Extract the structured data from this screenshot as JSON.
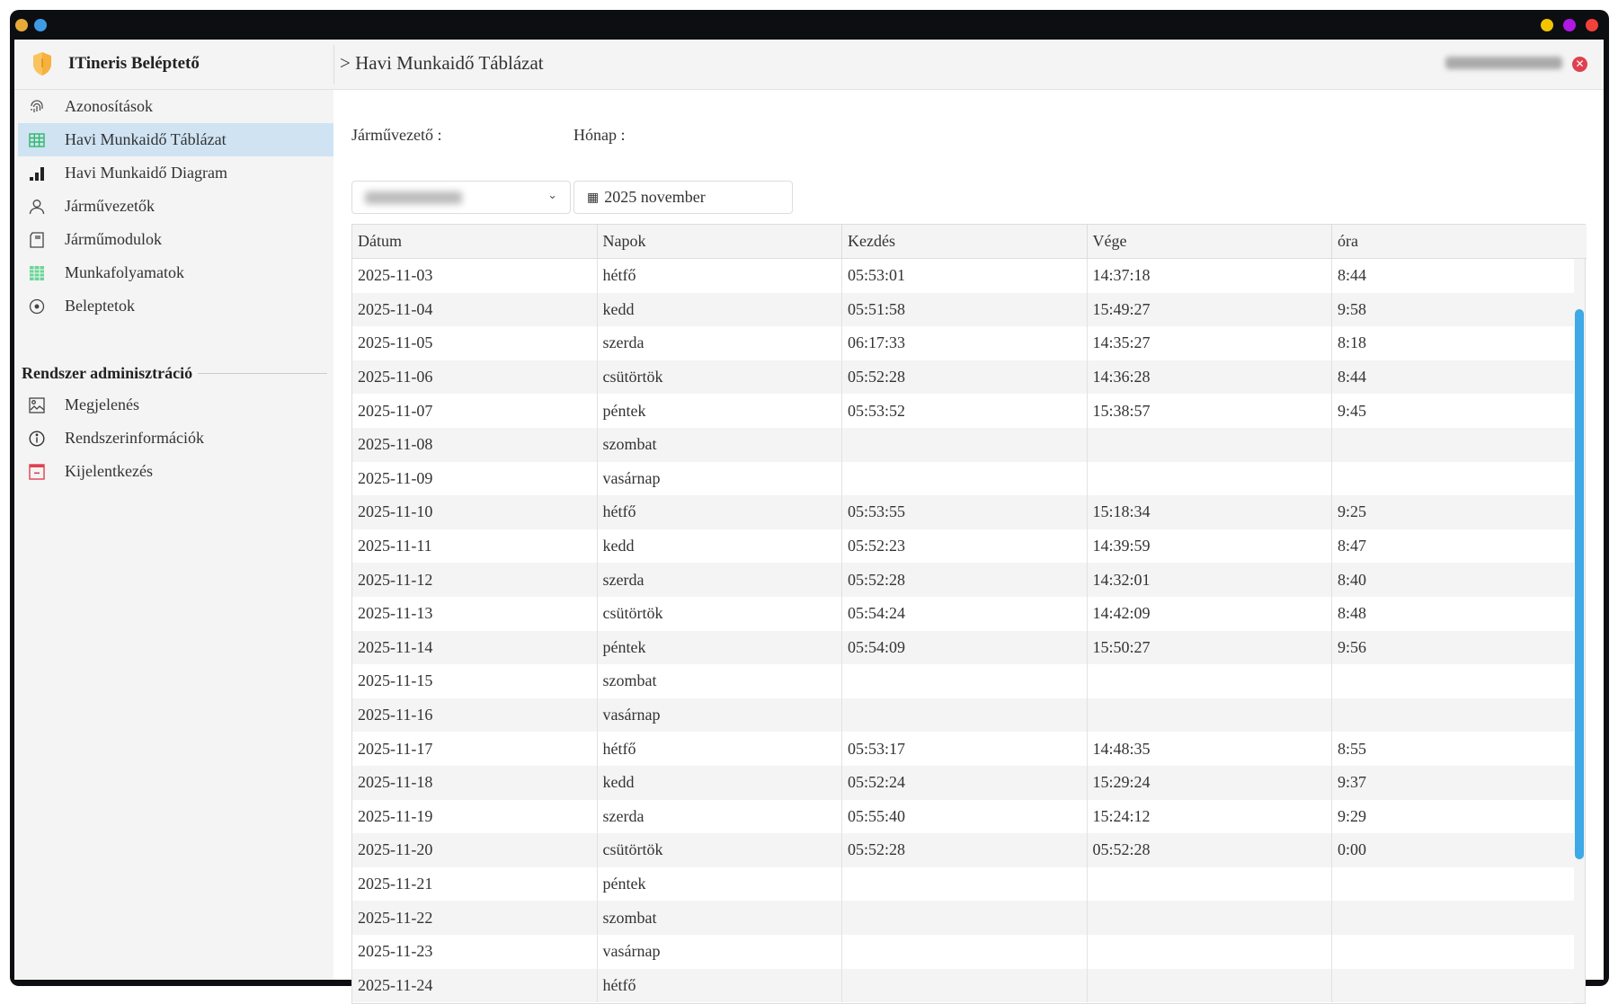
{
  "app": {
    "title": "ITineris Beléptető",
    "breadcrumb": "> Havi Munkaidő Táblázat"
  },
  "colors": {
    "accent": "#3da9e6",
    "active_bg": "#cfe3f3",
    "logo": "#f6b23c",
    "logout": "#e0414f"
  },
  "window_controls": [
    "yellow",
    "purple",
    "red"
  ],
  "sidebar": {
    "items": [
      {
        "label": "Azonosítások",
        "icon": "fingerprint-icon"
      },
      {
        "label": "Havi Munkaidő Táblázat",
        "icon": "table-icon",
        "active": true
      },
      {
        "label": "Havi Munkaidő Diagram",
        "icon": "bar-chart-icon"
      },
      {
        "label": "Járművezetők",
        "icon": "user-icon"
      },
      {
        "label": "Járműmodulok",
        "icon": "sd-card-icon"
      },
      {
        "label": "Munkafolyamatok",
        "icon": "spreadsheet-icon"
      },
      {
        "label": "Beleptetok",
        "icon": "target-icon"
      }
    ],
    "admin_section": "Rendszer adminisztráció",
    "admin_items": [
      {
        "label": "Megjelenés",
        "icon": "image-icon"
      },
      {
        "label": "Rendszerinformációk",
        "icon": "info-icon"
      },
      {
        "label": "Kijelentkezés",
        "icon": "logout-icon"
      }
    ]
  },
  "filters": {
    "driver_label": "Járművezető :",
    "month_label": "Hónap :",
    "month_value": "2025 november"
  },
  "table": {
    "columns": [
      "Dátum",
      "Napok",
      "Kezdés",
      "Vége",
      "óra"
    ],
    "rows": [
      [
        "2025-11-03",
        "hétfő",
        "05:53:01",
        "14:37:18",
        "8:44"
      ],
      [
        "2025-11-04",
        "kedd",
        "05:51:58",
        "15:49:27",
        "9:58"
      ],
      [
        "2025-11-05",
        "szerda",
        "06:17:33",
        "14:35:27",
        "8:18"
      ],
      [
        "2025-11-06",
        "csütörtök",
        "05:52:28",
        "14:36:28",
        "8:44"
      ],
      [
        "2025-11-07",
        "péntek",
        "05:53:52",
        "15:38:57",
        "9:45"
      ],
      [
        "2025-11-08",
        "szombat",
        "",
        "",
        ""
      ],
      [
        "2025-11-09",
        "vasárnap",
        "",
        "",
        ""
      ],
      [
        "2025-11-10",
        "hétfő",
        "05:53:55",
        "15:18:34",
        "9:25"
      ],
      [
        "2025-11-11",
        "kedd",
        "05:52:23",
        "14:39:59",
        "8:47"
      ],
      [
        "2025-11-12",
        "szerda",
        "05:52:28",
        "14:32:01",
        "8:40"
      ],
      [
        "2025-11-13",
        "csütörtök",
        "05:54:24",
        "14:42:09",
        "8:48"
      ],
      [
        "2025-11-14",
        "péntek",
        "05:54:09",
        "15:50:27",
        "9:56"
      ],
      [
        "2025-11-15",
        "szombat",
        "",
        "",
        ""
      ],
      [
        "2025-11-16",
        "vasárnap",
        "",
        "",
        ""
      ],
      [
        "2025-11-17",
        "hétfő",
        "05:53:17",
        "14:48:35",
        "8:55"
      ],
      [
        "2025-11-18",
        "kedd",
        "05:52:24",
        "15:29:24",
        "9:37"
      ],
      [
        "2025-11-19",
        "szerda",
        "05:55:40",
        "15:24:12",
        "9:29"
      ],
      [
        "2025-11-20",
        "csütörtök",
        "05:52:28",
        "05:52:28",
        "0:00"
      ],
      [
        "2025-11-21",
        "péntek",
        "",
        "",
        ""
      ],
      [
        "2025-11-22",
        "szombat",
        "",
        "",
        ""
      ],
      [
        "2025-11-23",
        "vasárnap",
        "",
        "",
        ""
      ],
      [
        "2025-11-24",
        "hétfő",
        "",
        "",
        ""
      ]
    ]
  }
}
